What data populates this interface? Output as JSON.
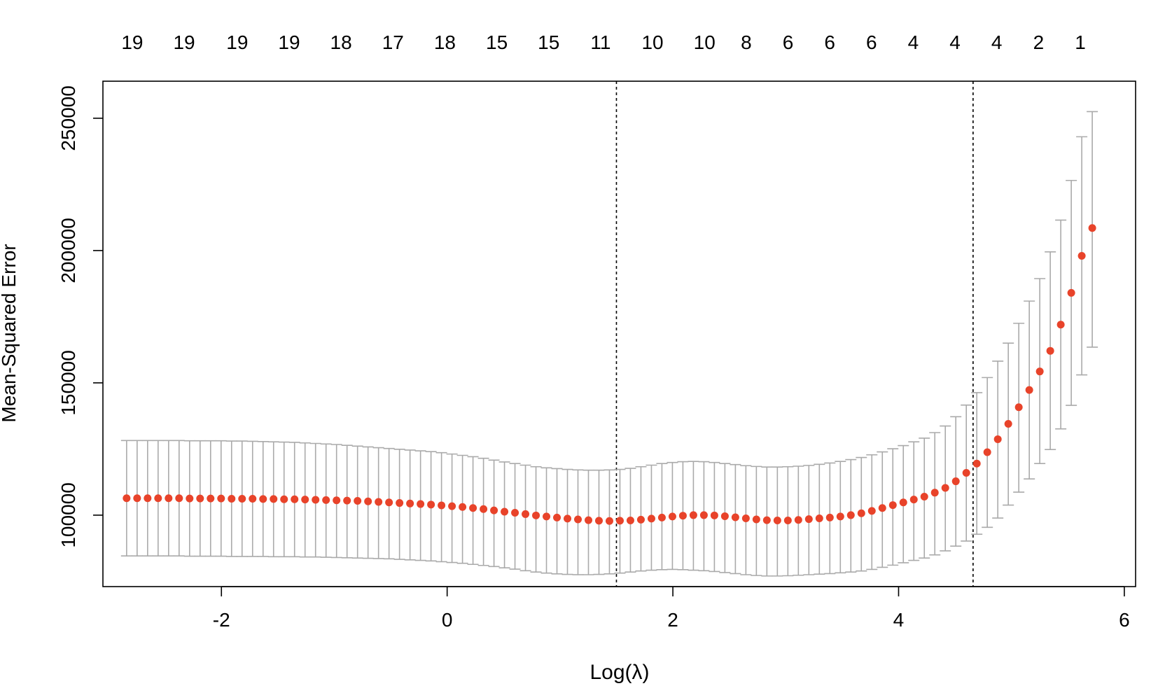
{
  "chart_data": {
    "type": "scatter",
    "xlabel": "Log(λ)",
    "ylabel": "Mean-Squared Error",
    "x_range": [
      -3.05,
      6.1
    ],
    "y_range": [
      73000,
      264000
    ],
    "x_ticks": [
      -2,
      0,
      2,
      4,
      6
    ],
    "x_tick_labels": [
      "-2",
      "0",
      "2",
      "4",
      "6"
    ],
    "y_ticks": [
      100000,
      150000,
      200000,
      250000
    ],
    "y_tick_labels": [
      "100000",
      "150000",
      "200000",
      "250000"
    ],
    "top_axis": {
      "positions": [
        -2.79,
        -2.33,
        -1.86,
        -1.4,
        -0.94,
        -0.48,
        -0.02,
        0.44,
        0.9,
        1.36,
        1.82,
        2.28,
        2.65,
        3.02,
        3.39,
        3.76,
        4.13,
        4.5,
        4.87,
        5.24,
        5.61
      ],
      "labels": [
        "19",
        "19",
        "19",
        "19",
        "18",
        "17",
        "18",
        "15",
        "15",
        "11",
        "10",
        "10",
        "8",
        "6",
        "6",
        "6",
        "4",
        "4",
        "4",
        "2",
        "1"
      ]
    },
    "reference_lines_x": [
      1.5,
      4.66
    ],
    "grid": false,
    "legend": "none",
    "colors": {
      "points": "#e8432a",
      "error_bars": "#aaaaaa",
      "axes": "#000000",
      "reference_lines": "#000000"
    },
    "series": [
      {
        "x": [
          -2.84,
          -2.747,
          -2.654,
          -2.561,
          -2.468,
          -2.375,
          -2.282,
          -2.189,
          -2.096,
          -2.003,
          -1.91,
          -1.817,
          -1.724,
          -1.631,
          -1.538,
          -1.445,
          -1.352,
          -1.259,
          -1.166,
          -1.073,
          -0.98,
          -0.887,
          -0.794,
          -0.701,
          -0.608,
          -0.515,
          -0.422,
          -0.329,
          -0.236,
          -0.143,
          -0.05,
          0.043,
          0.136,
          0.229,
          0.322,
          0.415,
          0.508,
          0.601,
          0.694,
          0.787,
          0.88,
          0.973,
          1.066,
          1.159,
          1.252,
          1.345,
          1.438,
          1.531,
          1.624,
          1.717,
          1.81,
          1.903,
          1.996,
          2.089,
          2.182,
          2.275,
          2.368,
          2.461,
          2.554,
          2.647,
          2.74,
          2.833,
          2.926,
          3.019,
          3.112,
          3.205,
          3.298,
          3.391,
          3.484,
          3.577,
          3.67,
          3.763,
          3.856,
          3.949,
          4.042,
          4.135,
          4.228,
          4.321,
          4.414,
          4.507,
          4.6,
          4.693,
          4.786,
          4.879,
          4.972,
          5.065,
          5.158,
          5.251,
          5.344,
          5.437,
          5.53,
          5.623,
          5.716
        ],
        "y": [
          106400,
          106400,
          106400,
          106400,
          106400,
          106400,
          106300,
          106300,
          106300,
          106300,
          106200,
          106200,
          106200,
          106100,
          106100,
          106000,
          106000,
          105900,
          105800,
          105700,
          105600,
          105500,
          105400,
          105200,
          105000,
          104800,
          104600,
          104400,
          104200,
          104000,
          103700,
          103400,
          103100,
          102700,
          102300,
          101800,
          101300,
          100900,
          100400,
          99900,
          99500,
          99100,
          98700,
          98400,
          98100,
          97900,
          97800,
          97900,
          98000,
          98300,
          98700,
          99100,
          99500,
          99800,
          100000,
          100000,
          99900,
          99600,
          99200,
          98800,
          98400,
          98100,
          98000,
          98000,
          98200,
          98500,
          98800,
          99100,
          99500,
          100000,
          100700,
          101600,
          102700,
          103800,
          104800,
          105900,
          107000,
          108500,
          110300,
          112800,
          116000,
          119500,
          123800,
          128700,
          134500,
          140800,
          147300,
          154300,
          162100,
          172000,
          184000,
          198000,
          208500
        ],
        "upper": [
          128200,
          128200,
          128200,
          128200,
          128200,
          128200,
          128100,
          128100,
          128100,
          128100,
          128000,
          128000,
          127900,
          127800,
          127700,
          127600,
          127500,
          127300,
          127100,
          126900,
          126700,
          126400,
          126100,
          125800,
          125500,
          125200,
          124900,
          124600,
          124300,
          124000,
          123600,
          123100,
          122600,
          122100,
          121500,
          120800,
          120100,
          119500,
          118900,
          118300,
          117900,
          117600,
          117300,
          117100,
          117000,
          117000,
          117100,
          117300,
          117700,
          118300,
          118900,
          119500,
          119900,
          120200,
          120300,
          120200,
          119900,
          119500,
          119100,
          118700,
          118400,
          118200,
          118200,
          118300,
          118500,
          118800,
          119200,
          119700,
          120300,
          121000,
          121800,
          122800,
          123900,
          125100,
          126300,
          127700,
          129100,
          131200,
          133700,
          137200,
          141600,
          146300,
          152000,
          158200,
          165000,
          172500,
          180900,
          189400,
          199500,
          211500,
          226500,
          243000,
          252500
        ],
        "lower": [
          84600,
          84600,
          84600,
          84600,
          84600,
          84600,
          84500,
          84500,
          84500,
          84500,
          84400,
          84400,
          84400,
          84400,
          84300,
          84300,
          84300,
          84200,
          84200,
          84100,
          84000,
          83900,
          83800,
          83700,
          83600,
          83500,
          83300,
          83100,
          82900,
          82700,
          82400,
          82100,
          81800,
          81400,
          81000,
          80600,
          80100,
          79600,
          79000,
          78500,
          78100,
          77800,
          77600,
          77500,
          77500,
          77600,
          77800,
          78100,
          78500,
          78900,
          79200,
          79400,
          79500,
          79400,
          79200,
          79000,
          78700,
          78300,
          77900,
          77500,
          77200,
          77000,
          77000,
          77100,
          77300,
          77500,
          77700,
          77900,
          78200,
          78500,
          78900,
          79500,
          80300,
          81100,
          82000,
          82900,
          83800,
          85000,
          86500,
          88300,
          90200,
          92800,
          95400,
          98900,
          103800,
          108700,
          113700,
          119500,
          124800,
          132600,
          141500,
          153000,
          163500
        ]
      }
    ]
  }
}
